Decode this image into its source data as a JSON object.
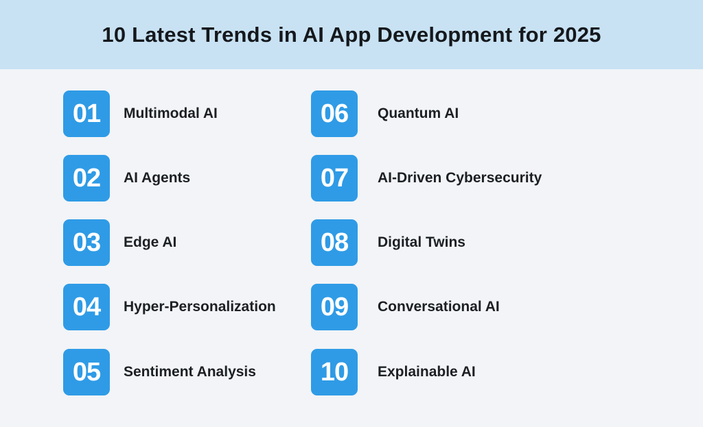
{
  "title": "10 Latest Trends in AI App Development for 2025",
  "colors": {
    "header_bg": "#c8e2f3",
    "page_bg": "#f2f4f7",
    "badge": "#2f9be6",
    "text": "#1c1f23"
  },
  "items": [
    {
      "number": "01",
      "label": "Multimodal AI"
    },
    {
      "number": "02",
      "label": "AI Agents"
    },
    {
      "number": "03",
      "label": "Edge AI"
    },
    {
      "number": "04",
      "label": "Hyper-Personalization"
    },
    {
      "number": "05",
      "label": "Sentiment Analysis"
    },
    {
      "number": "06",
      "label": "Quantum AI"
    },
    {
      "number": "07",
      "label": "AI-Driven Cybersecurity"
    },
    {
      "number": "08",
      "label": "Digital Twins"
    },
    {
      "number": "09",
      "label": "Conversational AI"
    },
    {
      "number": "10",
      "label": "Explainable AI"
    }
  ]
}
